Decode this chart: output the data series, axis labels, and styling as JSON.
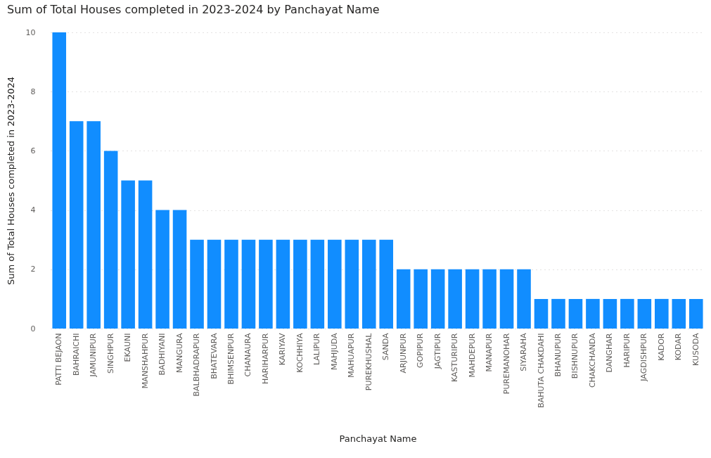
{
  "chart_data": {
    "type": "bar",
    "title": "Sum of Total Houses completed in 2023-2024 by Panchayat Name",
    "xlabel": "Panchayat Name",
    "ylabel": "Sum of Total Houses completed in 2023-2024",
    "categories": [
      "PATTI BEJAON",
      "BAHRAICHI",
      "JAMUNIPUR",
      "SINGHPUR",
      "EKAUNI",
      "MANSHAHPUR",
      "BADHIYANI",
      "MANGURA",
      "BALBHADRAPUR",
      "BHATEVARA",
      "BHIMSENPUR",
      "CHANAURA",
      "HARIHARPUR",
      "KARIYAV",
      "KOCHHIYA",
      "LALIPUR",
      "MAHJUDA",
      "MAHUAPUR",
      "PUREKHUSHAL",
      "SANDA",
      "ARJUNPUR",
      "GOPIPUR",
      "JAGTIPUR",
      "KASTURIPUR",
      "MAHDEPUR",
      "MANAPUR",
      "PUREMANOHAR",
      "SIYARAHA",
      "BAHUTA CHAKDAHI",
      "BHANUPUR",
      "BISHNUPUR",
      "CHAKCHANDA",
      "DANGHAR",
      "HARIPUR",
      "JAGDISHPUR",
      "KADOR",
      "KODAR",
      "KUSODA"
    ],
    "values": [
      10,
      7,
      7,
      6,
      5,
      5,
      4,
      4,
      3,
      3,
      3,
      3,
      3,
      3,
      3,
      3,
      3,
      3,
      3,
      3,
      2,
      2,
      2,
      2,
      2,
      2,
      2,
      2,
      1,
      1,
      1,
      1,
      1,
      1,
      1,
      1,
      1,
      1
    ],
    "color": "#118dff",
    "ylim": [
      0,
      10
    ],
    "yticks": [
      0,
      2,
      4,
      6,
      8,
      10
    ],
    "grid": "y"
  }
}
